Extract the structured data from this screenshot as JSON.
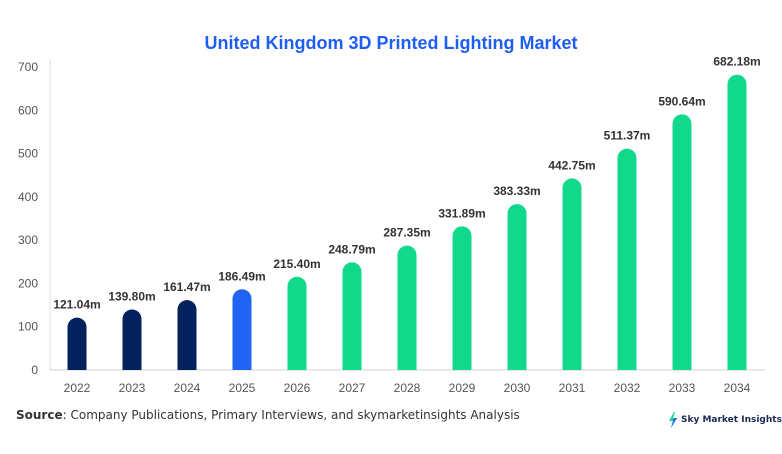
{
  "chart_data": {
    "type": "bar",
    "title": "United Kingdom 3D Printed Lighting Market",
    "categories": [
      "2022",
      "2023",
      "2024",
      "2025",
      "2026",
      "2027",
      "2028",
      "2029",
      "2030",
      "2031",
      "2032",
      "2033",
      "2034"
    ],
    "values": [
      121.04,
      139.8,
      161.47,
      186.49,
      215.4,
      248.79,
      287.35,
      331.89,
      383.33,
      442.75,
      511.37,
      590.64,
      682.18
    ],
    "data_labels": [
      "121.04m",
      "139.80m",
      "161.47m",
      "186.49m",
      "215.40m",
      "248.79m",
      "287.35m",
      "331.89m",
      "383.33m",
      "442.75m",
      "511.37m",
      "590.64m",
      "682.18m"
    ],
    "ylim": [
      0,
      700
    ],
    "yticks": [
      0,
      100,
      200,
      300,
      400,
      500,
      600,
      700
    ],
    "xlabel": "",
    "ylabel": "",
    "grid": false,
    "colors": {
      "historical": "#03215c",
      "current": "#2163f3",
      "forecast": "#11d98c"
    },
    "bar_color_groups": [
      "historical",
      "historical",
      "historical",
      "current",
      "forecast",
      "forecast",
      "forecast",
      "forecast",
      "forecast",
      "forecast",
      "forecast",
      "forecast",
      "forecast"
    ]
  },
  "footer": {
    "source_label": "Source",
    "source_text": ": Company Publications, Primary Interviews, and skymarketinsights Analysis",
    "logo_text": "Sky Market Insights"
  }
}
